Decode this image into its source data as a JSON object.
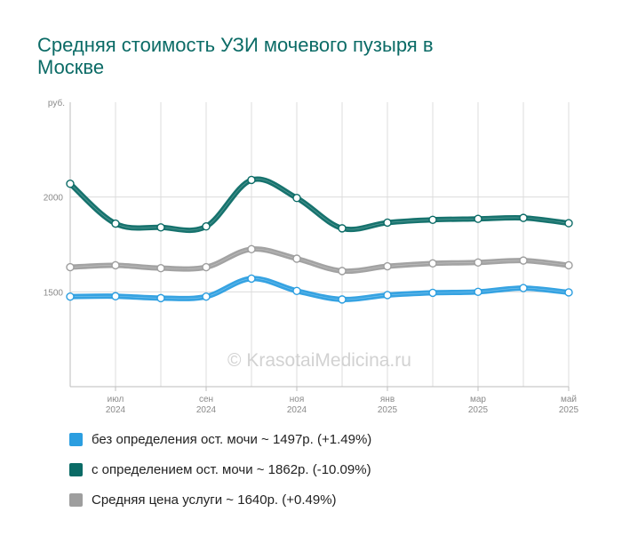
{
  "chart_data": {
    "type": "line",
    "title": "Средняя стоимость УЗИ мочевого пузыря в Москве",
    "ylabel": "руб.",
    "ylim": [
      1000,
      2500
    ],
    "yticks": [
      {
        "value": 1500,
        "label": "1500"
      },
      {
        "value": 2000,
        "label": "2000"
      }
    ],
    "x": [
      "2024-06",
      "2024-07",
      "2024-08",
      "2024-09",
      "2024-10",
      "2024-11",
      "2024-12",
      "2025-01",
      "2025-02",
      "2025-03",
      "2025-04",
      "2025-05"
    ],
    "xticks": [
      {
        "month": "июл",
        "year": "2024"
      },
      {
        "month": "сен",
        "year": "2024"
      },
      {
        "month": "ноя",
        "year": "2024"
      },
      {
        "month": "янв",
        "year": "2025"
      },
      {
        "month": "мар",
        "year": "2025"
      },
      {
        "month": "май",
        "year": "2025"
      }
    ],
    "grid": true,
    "legend_position": "bottom",
    "series": [
      {
        "name": "Средняя цена услуги",
        "color": "#9e9e9e",
        "values": [
          1630,
          1640,
          1625,
          1630,
          1725,
          1675,
          1610,
          1635,
          1650,
          1655,
          1665,
          1640
        ]
      },
      {
        "name": "без определения ост. мочи",
        "color": "#2b9ee0",
        "values": [
          1475,
          1477,
          1467,
          1475,
          1570,
          1505,
          1460,
          1483,
          1495,
          1500,
          1520,
          1497
        ]
      },
      {
        "name": "с определением ост. мочи",
        "color": "#0b6b66",
        "values": [
          2070,
          1860,
          1840,
          1845,
          2090,
          1995,
          1835,
          1865,
          1880,
          1885,
          1890,
          1862
        ]
      }
    ],
    "watermark": "© KrasotaiMedicina.ru"
  },
  "legend": [
    {
      "label": "без определения ост. мочи ~ 1497р. (+1.49%)",
      "color": "#2b9ee0"
    },
    {
      "label": "с определением ост. мочи ~ 1862р. (-10.09%)",
      "color": "#0b6b66"
    },
    {
      "label": "Средняя цена услуги ~ 1640р. (+0.49%)",
      "color": "#9e9e9e"
    }
  ]
}
